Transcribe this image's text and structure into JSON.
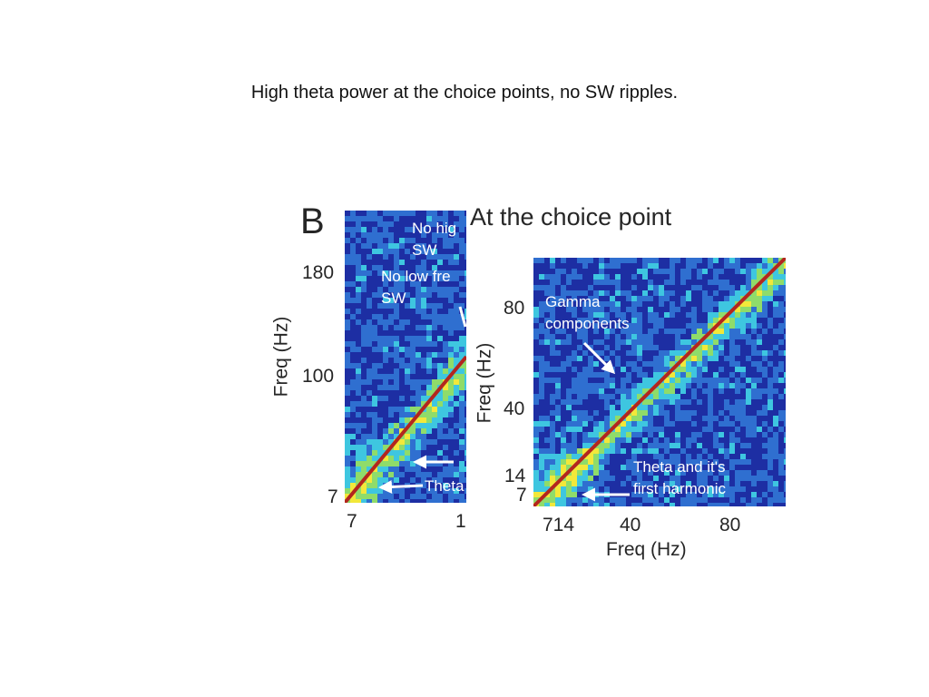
{
  "slide": {
    "title": "High theta power at the choice points, no SW ripples."
  },
  "figure": {
    "panel_letter": "B",
    "heading": "At the choice point"
  },
  "colors": {
    "heatmap_background": "#1d2ea3",
    "heatmap_mid": "#3ec6e0",
    "heatmap_high": "#f2e83a",
    "diagonal": "#b3261e",
    "annotation_text": "#ffffff"
  },
  "chart_data": [
    {
      "type": "heatmap",
      "xlabel": "",
      "ylabel": "Freq (Hz)",
      "x_ticks": [
        "7",
        "1"
      ],
      "y_ticks": [
        "180",
        "100",
        "7"
      ],
      "annotations": [
        {
          "lines": [
            "No hig",
            "SW"
          ]
        },
        {
          "lines": [
            "No low fre",
            "SW"
          ]
        },
        {
          "lines": [
            "Theta"
          ]
        }
      ]
    },
    {
      "type": "heatmap",
      "xlabel": "Freq (Hz)",
      "ylabel": "Freq (Hz)",
      "x_ticks": [
        "714",
        "40",
        "80"
      ],
      "y_ticks": [
        "80",
        "40",
        "14",
        "7"
      ],
      "annotations": [
        {
          "lines": [
            "Gamma",
            "components"
          ]
        },
        {
          "lines": [
            "Theta and it's",
            "first harmonic"
          ]
        }
      ]
    }
  ]
}
